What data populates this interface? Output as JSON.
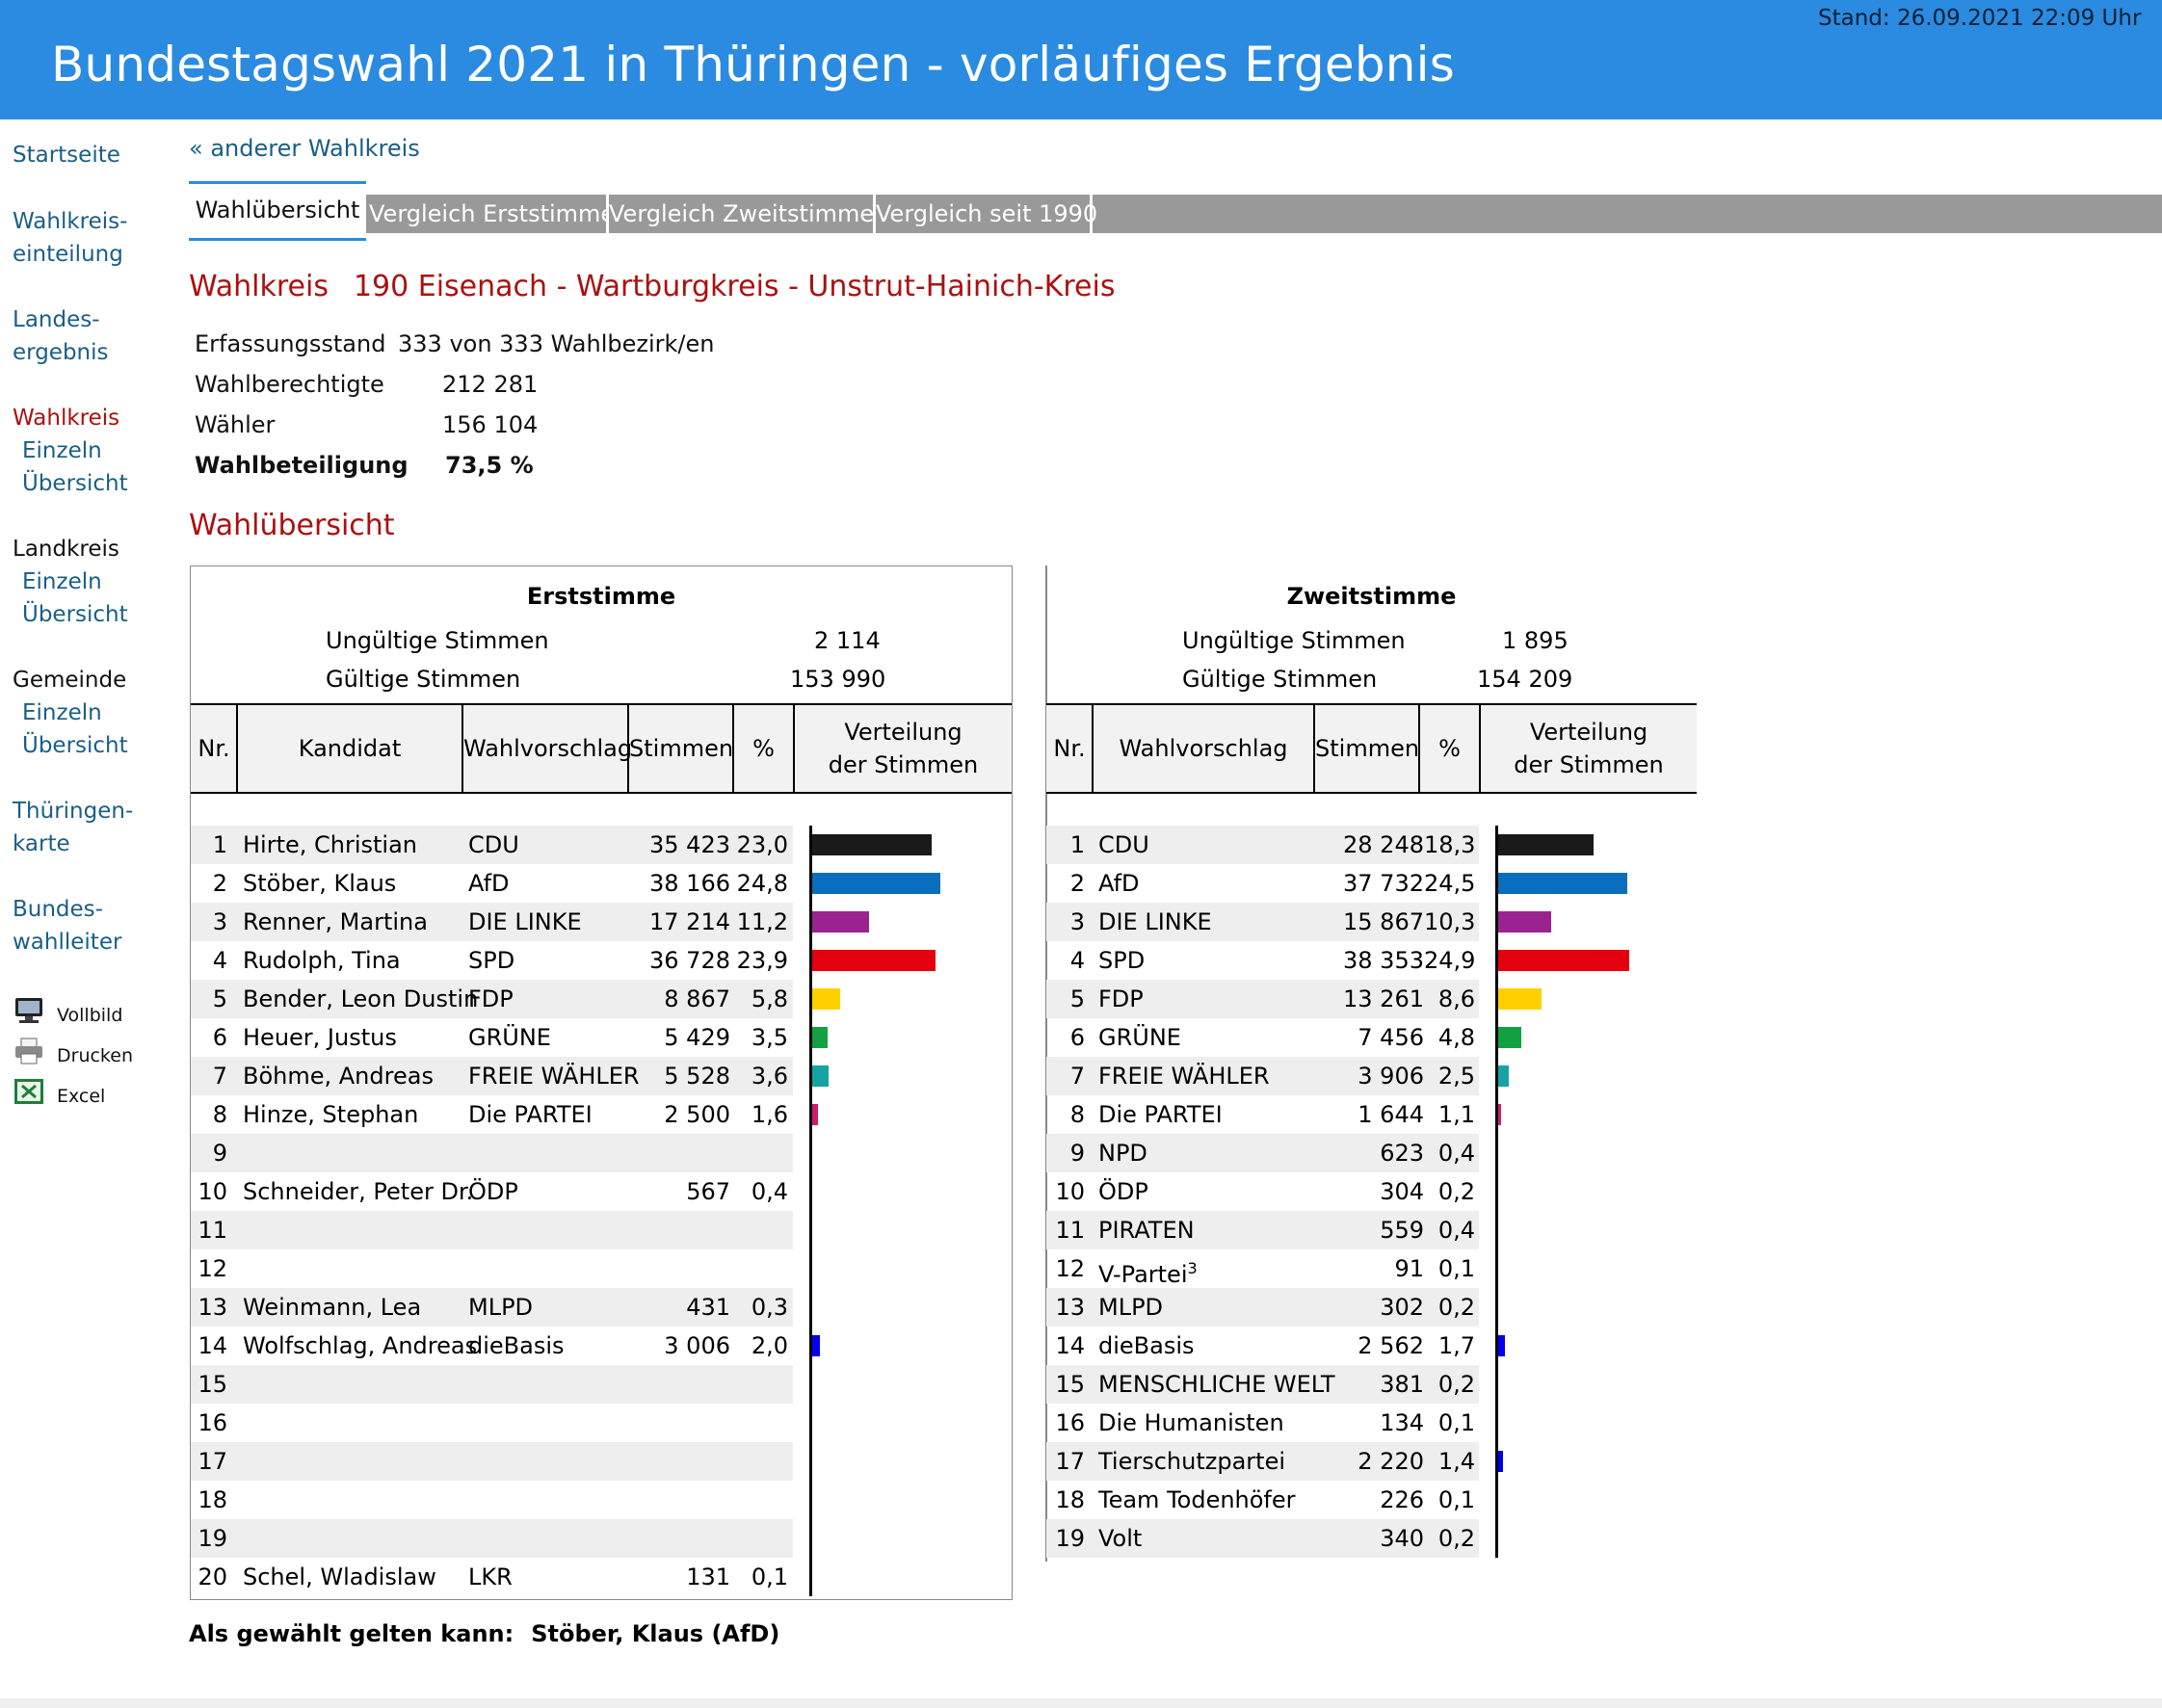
{
  "header": {
    "title": "Bundestagswahl 2021 in Thüringen - vorläufiges Ergebnis",
    "stand": "Stand: 26.09.2021  22:09 Uhr"
  },
  "sidebar": {
    "startseite": "Startseite",
    "wahlkreiseinteilung_1": "Wahlkreis-",
    "wahlkreiseinteilung_2": "einteilung",
    "landesergebnis_1": "Landes-",
    "landesergebnis_2": "ergebnis",
    "wahlkreis": "Wahlkreis",
    "wahlkreis_einzeln": "Einzeln",
    "wahlkreis_uebersicht": "Übersicht",
    "landkreis": "Landkreis",
    "landkreis_einzeln": "Einzeln",
    "landkreis_uebersicht": "Übersicht",
    "gemeinde": "Gemeinde",
    "gemeinde_einzeln": "Einzeln",
    "gemeinde_uebersicht": "Übersicht",
    "karte_1": "Thüringen-",
    "karte_2": "karte",
    "bundeswahlleiter_1": "Bundes-",
    "bundeswahlleiter_2": "wahlleiter",
    "tools": [
      {
        "label": "Vollbild",
        "icon": "monitor-icon"
      },
      {
        "label": "Drucken",
        "icon": "printer-icon"
      },
      {
        "label": "Excel",
        "icon": "excel-icon"
      }
    ]
  },
  "nav": {
    "back_link": "« anderer Wahlkreis",
    "tabs": [
      {
        "label": "Wahlübersicht",
        "active": true
      },
      {
        "label": "Vergleich Erststimme",
        "active": false
      },
      {
        "label": "Vergleich Zweitstimme",
        "active": false
      },
      {
        "label": "Vergleich seit 1990",
        "active": false
      }
    ]
  },
  "wahlkreis": {
    "label": "Wahlkreis",
    "name": "190 Eisenach - Wartburgkreis - Unstrut-Hainich-Kreis"
  },
  "stats": {
    "erfassungsstand_label": "Erfassungsstand",
    "erfassungsstand_value": "333 von 333  Wahlbezirk/en",
    "wahlberechtigte_label": "Wahlberechtigte",
    "wahlberechtigte_value": "212 281",
    "waehler_label": "Wähler",
    "waehler_value": "156 104",
    "wahlbeteiligung_label": "Wahlbeteiligung",
    "wahlbeteiligung_value": "73,5  %"
  },
  "section_title": "Wahlübersicht",
  "colors": {
    "header": "#2a8be0",
    "link": "#1a5e86",
    "heading": "#aa1111",
    "CDU": "#1a1a1a",
    "AfD": "#0a6ebd",
    "DIE LINKE": "#9b2390",
    "SPD": "#e3000f",
    "FDP": "#ffd000",
    "GRÜNE": "#13a040",
    "FREIE WÄHLER": "#17a3a3",
    "Die PARTEI": "#cc1e6e",
    "NPD": "#8b4513",
    "ÖDP": "#00008b",
    "PIRATEN": "#ff9900",
    "MLPD": "#1a1aa0",
    "dieBasis": "#0000ee",
    "MENSCHLICHE WELT": "#000099",
    "Tierschutzpartei": "#0000ee",
    "LKR": "#000066"
  },
  "erst": {
    "title": "Erststimme",
    "ungueltig_label": "Ungültige Stimmen",
    "ungueltig_value": "2 114",
    "gueltig_label": "Gültige Stimmen",
    "gueltig_value": "153 990",
    "headers": {
      "nr": "Nr.",
      "kandidat": "Kandidat",
      "wahlvorschlag": "Wahlvorschlag",
      "stimmen": "Stimmen",
      "prozent": "%",
      "verteilung_1": "Verteilung",
      "verteilung_2": "der Stimmen"
    },
    "rows": [
      {
        "nr": "1",
        "kandidat": "Hirte, Christian",
        "partei": "CDU",
        "stimmen": "35 423",
        "pct": "23,0",
        "value": 23.0
      },
      {
        "nr": "2",
        "kandidat": "Stöber, Klaus",
        "partei": "AfD",
        "stimmen": "38 166",
        "pct": "24,8",
        "value": 24.8
      },
      {
        "nr": "3",
        "kandidat": "Renner, Martina",
        "partei": "DIE LINKE",
        "stimmen": "17 214",
        "pct": "11,2",
        "value": 11.2
      },
      {
        "nr": "4",
        "kandidat": "Rudolph, Tina",
        "partei": "SPD",
        "stimmen": "36 728",
        "pct": "23,9",
        "value": 23.9
      },
      {
        "nr": "5",
        "kandidat": "Bender, Leon Dustin",
        "partei": "FDP",
        "stimmen": "8 867",
        "pct": "5,8",
        "value": 5.8
      },
      {
        "nr": "6",
        "kandidat": "Heuer, Justus",
        "partei": "GRÜNE",
        "stimmen": "5 429",
        "pct": "3,5",
        "value": 3.5
      },
      {
        "nr": "7",
        "kandidat": "Böhme, Andreas",
        "partei": "FREIE WÄHLER",
        "stimmen": "5 528",
        "pct": "3,6",
        "value": 3.6
      },
      {
        "nr": "8",
        "kandidat": "Hinze, Stephan",
        "partei": "Die PARTEI",
        "stimmen": "2 500",
        "pct": "1,6",
        "value": 1.6
      },
      {
        "nr": "9",
        "kandidat": "",
        "partei": "",
        "stimmen": "",
        "pct": "",
        "value": 0
      },
      {
        "nr": "10",
        "kandidat": "Schneider, Peter Dr.",
        "partei": "ÖDP",
        "stimmen": "567",
        "pct": "0,4",
        "value": 0.4
      },
      {
        "nr": "11",
        "kandidat": "",
        "partei": "",
        "stimmen": "",
        "pct": "",
        "value": 0
      },
      {
        "nr": "12",
        "kandidat": "",
        "partei": "",
        "stimmen": "",
        "pct": "",
        "value": 0
      },
      {
        "nr": "13",
        "kandidat": "Weinmann, Lea",
        "partei": "MLPD",
        "stimmen": "431",
        "pct": "0,3",
        "value": 0.3
      },
      {
        "nr": "14",
        "kandidat": "Wolfschlag, Andreas",
        "partei": "dieBasis",
        "stimmen": "3 006",
        "pct": "2,0",
        "value": 2.0
      },
      {
        "nr": "15",
        "kandidat": "",
        "partei": "",
        "stimmen": "",
        "pct": "",
        "value": 0
      },
      {
        "nr": "16",
        "kandidat": "",
        "partei": "",
        "stimmen": "",
        "pct": "",
        "value": 0
      },
      {
        "nr": "17",
        "kandidat": "",
        "partei": "",
        "stimmen": "",
        "pct": "",
        "value": 0
      },
      {
        "nr": "18",
        "kandidat": "",
        "partei": "",
        "stimmen": "",
        "pct": "",
        "value": 0
      },
      {
        "nr": "19",
        "kandidat": "",
        "partei": "",
        "stimmen": "",
        "pct": "",
        "value": 0
      },
      {
        "nr": "20",
        "kandidat": "Schel, Wladislaw",
        "partei": "LKR",
        "stimmen": "131",
        "pct": "0,1",
        "value": 0.1
      }
    ]
  },
  "zweit": {
    "title": "Zweitstimme",
    "ungueltig_label": "Ungültige Stimmen",
    "ungueltig_value": "1 895",
    "gueltig_label": "Gültige Stimmen",
    "gueltig_value": "154 209",
    "headers": {
      "nr": "Nr.",
      "wahlvorschlag": "Wahlvorschlag",
      "stimmen": "Stimmen",
      "prozent": "%",
      "verteilung_1": "Verteilung",
      "verteilung_2": "der Stimmen"
    },
    "rows": [
      {
        "nr": "1",
        "partei": "CDU",
        "sup": "",
        "stimmen": "28 248",
        "pct": "18,3",
        "value": 18.3
      },
      {
        "nr": "2",
        "partei": "AfD",
        "sup": "",
        "stimmen": "37 732",
        "pct": "24,5",
        "value": 24.5
      },
      {
        "nr": "3",
        "partei": "DIE LINKE",
        "sup": "",
        "stimmen": "15 867",
        "pct": "10,3",
        "value": 10.3
      },
      {
        "nr": "4",
        "partei": "SPD",
        "sup": "",
        "stimmen": "38 353",
        "pct": "24,9",
        "value": 24.9
      },
      {
        "nr": "5",
        "partei": "FDP",
        "sup": "",
        "stimmen": "13 261",
        "pct": "8,6",
        "value": 8.6
      },
      {
        "nr": "6",
        "partei": "GRÜNE",
        "sup": "",
        "stimmen": "7 456",
        "pct": "4,8",
        "value": 4.8
      },
      {
        "nr": "7",
        "partei": "FREIE WÄHLER",
        "sup": "",
        "stimmen": "3 906",
        "pct": "2,5",
        "value": 2.5
      },
      {
        "nr": "8",
        "partei": "Die PARTEI",
        "sup": "",
        "stimmen": "1 644",
        "pct": "1,1",
        "value": 1.1
      },
      {
        "nr": "9",
        "partei": "NPD",
        "sup": "",
        "stimmen": "623",
        "pct": "0,4",
        "value": 0.4
      },
      {
        "nr": "10",
        "partei": "ÖDP",
        "sup": "",
        "stimmen": "304",
        "pct": "0,2",
        "value": 0.2
      },
      {
        "nr": "11",
        "partei": "PIRATEN",
        "sup": "",
        "stimmen": "559",
        "pct": "0,4",
        "value": 0.4
      },
      {
        "nr": "12",
        "partei": "V-Partei",
        "sup": "3",
        "stimmen": "91",
        "pct": "0,1",
        "value": 0.1
      },
      {
        "nr": "13",
        "partei": "MLPD",
        "sup": "",
        "stimmen": "302",
        "pct": "0,2",
        "value": 0.2
      },
      {
        "nr": "14",
        "partei": "dieBasis",
        "sup": "",
        "stimmen": "2 562",
        "pct": "1,7",
        "value": 1.7
      },
      {
        "nr": "15",
        "partei": "MENSCHLICHE WELT",
        "sup": "",
        "stimmen": "381",
        "pct": "0,2",
        "value": 0.2
      },
      {
        "nr": "16",
        "partei": "Die Humanisten",
        "sup": "",
        "stimmen": "134",
        "pct": "0,1",
        "value": 0.1
      },
      {
        "nr": "17",
        "partei": "Tierschutzpartei",
        "sup": "",
        "stimmen": "2 220",
        "pct": "1,4",
        "value": 1.4
      },
      {
        "nr": "18",
        "partei": "Team Todenhöfer",
        "sup": "",
        "stimmen": "226",
        "pct": "0,1",
        "value": 0.1
      },
      {
        "nr": "19",
        "partei": "Volt",
        "sup": "",
        "stimmen": "340",
        "pct": "0,2",
        "value": 0.2
      }
    ]
  },
  "elected": {
    "label": "Als gewählt gelten kann:",
    "value": "Stöber, Klaus (AfD)"
  }
}
